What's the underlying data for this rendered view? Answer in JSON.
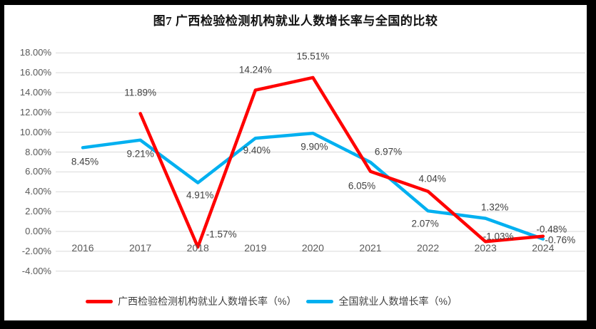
{
  "page": {
    "background_color": "#000000",
    "panel_color": "#ffffff"
  },
  "title": "图7 广西检验检测机构就业人数增长率与全国的比较",
  "chart_data": {
    "type": "line",
    "title": "图7 广西检验检测机构就业人数增长率与全国的比较",
    "categories": [
      "2016",
      "2017",
      "2018",
      "2019",
      "2020",
      "2021",
      "2022",
      "2023",
      "2024"
    ],
    "series": [
      {
        "name": "全国就业人数增长率（%）",
        "color": "#00B0F0",
        "values": [
          8.45,
          9.21,
          4.91,
          9.4,
          9.9,
          6.97,
          2.07,
          1.32,
          -0.76
        ],
        "labels": [
          "8.45%",
          "9.21%",
          "4.91%",
          "9.40%",
          "9.90%",
          "6.97%",
          "2.07%",
          "1.32%",
          "-0.76%"
        ],
        "label_offsets": [
          [
            3,
            20
          ],
          [
            0,
            19
          ],
          [
            3,
            17
          ],
          [
            2,
            17
          ],
          [
            2,
            19
          ],
          [
            25,
            -15
          ],
          [
            -4,
            18
          ],
          [
            13,
            -16
          ],
          [
            24,
            1
          ]
        ]
      },
      {
        "name": "广西检验检测机构就业人数增长率（%）",
        "color": "#FF0000",
        "values": [
          null,
          11.89,
          -1.57,
          14.24,
          15.51,
          6.05,
          4.04,
          -1.03,
          -0.48
        ],
        "labels": [
          null,
          "11.89%",
          "-1.57%",
          "14.24%",
          "15.51%",
          "6.05%",
          "4.04%",
          "-1.03%",
          "-0.48%"
        ],
        "label_offsets": [
          null,
          [
            0,
            -29
          ],
          [
            33,
            -18
          ],
          [
            0,
            -29
          ],
          [
            0,
            -30
          ],
          [
            -12,
            20
          ],
          [
            6,
            -18
          ],
          [
            18,
            -7
          ],
          [
            12,
            -10
          ]
        ]
      }
    ],
    "ylim": [
      -4,
      18
    ],
    "ytick_step": 2,
    "ytick_labels": [
      "18.00%",
      "16.00%",
      "14.00%",
      "12.00%",
      "10.00%",
      "8.00%",
      "6.00%",
      "4.00%",
      "2.00%",
      "0.00%",
      "-2.00%",
      "-4.00%"
    ],
    "ytick_values": [
      18,
      16,
      14,
      12,
      10,
      8,
      6,
      4,
      2,
      0,
      -2,
      -4
    ],
    "grid": true,
    "gridline_color": "#D9D9D9",
    "tick_color": "#595959",
    "data_label_color": "#404040",
    "legend_position": "bottom"
  },
  "legend": {
    "items": [
      {
        "label": "广西检验检测机构就业人数增长率（%）",
        "color": "#FF0000"
      },
      {
        "label": "全国就业人数增长率（%）",
        "color": "#00B0F0"
      }
    ]
  }
}
